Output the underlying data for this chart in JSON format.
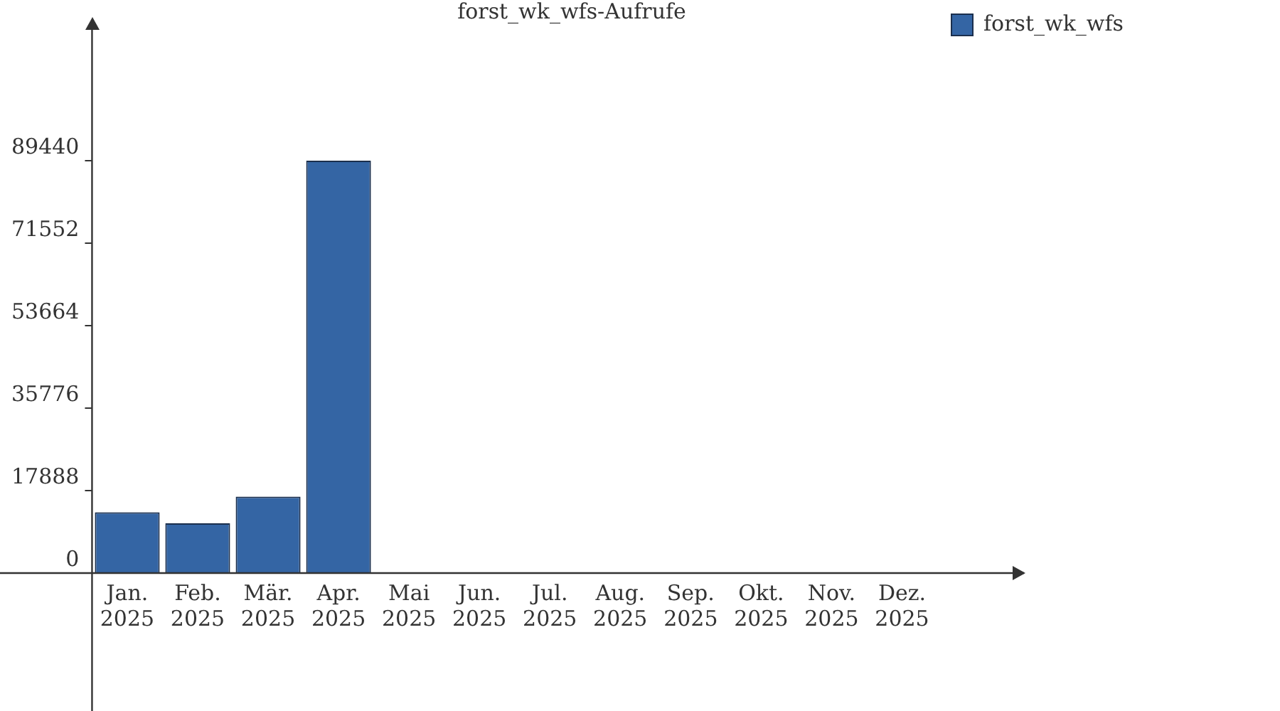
{
  "chart_data": {
    "type": "bar",
    "title": "forst_wk_wfs-Aufrufe",
    "categories": [
      "Jan. 2025",
      "Feb. 2025",
      "Mär. 2025",
      "Apr. 2025",
      "Mai 2025",
      "Jun. 2025",
      "Jul. 2025",
      "Aug. 2025",
      "Sep. 2025",
      "Okt. 2025",
      "Nov. 2025",
      "Dez. 2025"
    ],
    "series": [
      {
        "name": "forst_wk_wfs",
        "color": "#3465a4",
        "values": [
          13200,
          10800,
          16600,
          89500,
          0,
          0,
          0,
          0,
          0,
          0,
          0,
          0
        ]
      }
    ],
    "ylim": [
      0,
      117600
    ],
    "yticks": [
      0,
      17888,
      35776,
      53664,
      71552,
      89440
    ],
    "grid": false,
    "legend": "top right"
  }
}
